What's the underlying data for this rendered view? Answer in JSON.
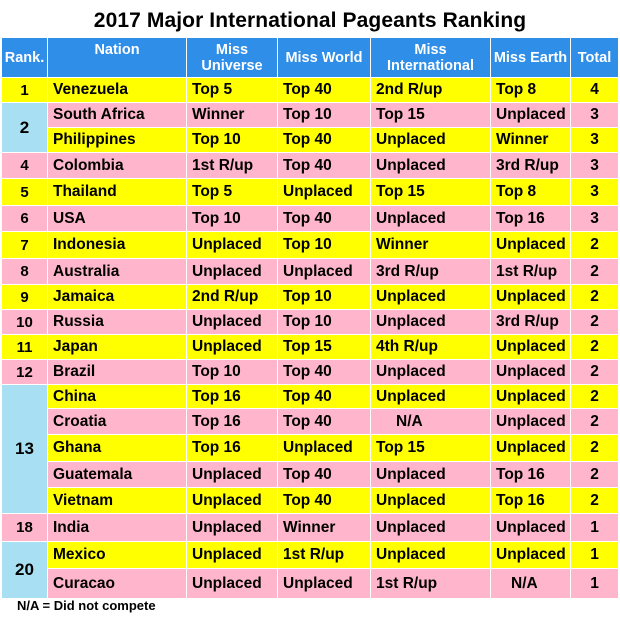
{
  "title": "2017 Major International Pageants Ranking",
  "headers": {
    "rank": "Rank.",
    "nation": "Nation",
    "universe": "Miss Universe",
    "world": "Miss World",
    "international": "Miss International",
    "earth": "Miss Earth",
    "total": "Total"
  },
  "rows": [
    {
      "rank": "1",
      "nation": "Venezuela",
      "universe": "Top 5",
      "world": "Top 40",
      "international": "2nd R/up",
      "earth": "Top 8",
      "total": "4"
    },
    {
      "rank": "2",
      "nation": "South Africa",
      "universe": "Winner",
      "world": "Top 10",
      "international": "Top 15",
      "earth": "Unplaced",
      "total": "3"
    },
    {
      "rank": "",
      "nation": "Philippines",
      "universe": "Top 10",
      "world": "Top 40",
      "international": "Unplaced",
      "earth": "Winner",
      "total": "3"
    },
    {
      "rank": "4",
      "nation": "Colombia",
      "universe": "1st R/up",
      "world": "Top 40",
      "international": "Unplaced",
      "earth": "3rd R/up",
      "total": "3"
    },
    {
      "rank": "5",
      "nation": "Thailand",
      "universe": "Top 5",
      "world": "Unplaced",
      "international": "Top 15",
      "earth": "Top 8",
      "total": "3"
    },
    {
      "rank": "6",
      "nation": "USA",
      "universe": "Top 10",
      "world": "Top 40",
      "international": "Unplaced",
      "earth": "Top 16",
      "total": "3"
    },
    {
      "rank": "7",
      "nation": "Indonesia",
      "universe": "Unplaced",
      "world": "Top 10",
      "international": "Winner",
      "earth": "Unplaced",
      "total": "2"
    },
    {
      "rank": "8",
      "nation": "Australia",
      "universe": "Unplaced",
      "world": "Unplaced",
      "international": "3rd R/up",
      "earth": "1st R/up",
      "total": "2"
    },
    {
      "rank": "9",
      "nation": "Jamaica",
      "universe": "2nd R/up",
      "world": "Top 10",
      "international": "Unplaced",
      "earth": "Unplaced",
      "total": "2"
    },
    {
      "rank": "10",
      "nation": "Russia",
      "universe": "Unplaced",
      "world": "Top 10",
      "international": "Unplaced",
      "earth": "3rd R/up",
      "total": "2"
    },
    {
      "rank": "11",
      "nation": "Japan",
      "universe": "Unplaced",
      "world": "Top 15",
      "international": "4th R/up",
      "earth": "Unplaced",
      "total": "2"
    },
    {
      "rank": "12",
      "nation": "Brazil",
      "universe": "Top 10",
      "world": "Top 40",
      "international": "Unplaced",
      "earth": "Unplaced",
      "total": "2"
    },
    {
      "rank": "13",
      "nation": "China",
      "universe": "Top 16",
      "world": "Top 40",
      "international": "Unplaced",
      "earth": "Unplaced",
      "total": "2"
    },
    {
      "rank": "",
      "nation": "Croatia",
      "universe": "Top 16",
      "world": "Top 40",
      "international": "N/A",
      "earth": "Unplaced",
      "total": "2"
    },
    {
      "rank": "",
      "nation": "Ghana",
      "universe": "Top 16",
      "world": "Unplaced",
      "international": "Top 15",
      "earth": "Unplaced",
      "total": "2"
    },
    {
      "rank": "",
      "nation": "Guatemala",
      "universe": "Unplaced",
      "world": "Top 40",
      "international": "Unplaced",
      "earth": "Top 16",
      "total": "2"
    },
    {
      "rank": "",
      "nation": "Vietnam",
      "universe": "Unplaced",
      "world": "Top 40",
      "international": "Unplaced",
      "earth": "Top 16",
      "total": "2"
    },
    {
      "rank": "18",
      "nation": "India",
      "universe": "Unplaced",
      "world": "Winner",
      "international": "Unplaced",
      "earth": "Unplaced",
      "total": "1"
    },
    {
      "rank": "20",
      "nation": "Mexico",
      "universe": "Unplaced",
      "world": "1st R/up",
      "international": "Unplaced",
      "earth": "Unplaced",
      "total": "1"
    },
    {
      "rank": "",
      "nation": "Curacao",
      "universe": "Unplaced",
      "world": "Unplaced",
      "international": "1st R/up",
      "earth": "N/A",
      "total": "1"
    }
  ],
  "footnote": "N/A = Did not compete"
}
